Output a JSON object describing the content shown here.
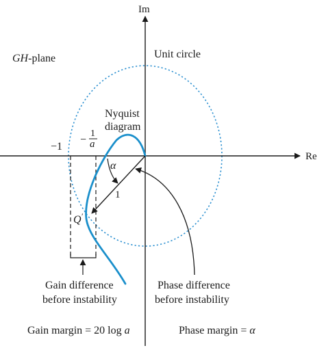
{
  "axes": {
    "imag_label": "Im",
    "real_label": "Re"
  },
  "plane_label": {
    "symbol": "GH",
    "suffix": "-plane"
  },
  "unit_circle_label": "Unit circle",
  "nyquist_label": {
    "line1": "Nyquist",
    "line2": "diagram"
  },
  "minus_one_label": "−1",
  "minus_inv_a": {
    "sign": "−",
    "numerator": "1",
    "denominator": "a"
  },
  "alpha_label": "α",
  "radius_label": "1",
  "point_label": "Q",
  "gain_difference": {
    "line1": "Gain difference",
    "line2": "before instability"
  },
  "phase_difference": {
    "line1": "Phase difference",
    "line2": "before instability"
  },
  "gain_margin": {
    "text": "Gain margin = 20 log ",
    "var": "a"
  },
  "phase_margin": {
    "text": "Phase margin = ",
    "var": "α"
  },
  "colors": {
    "curve": "#1a8fcb",
    "unit_circle": "#2a8fd0",
    "ink": "#1a1a1a"
  }
}
